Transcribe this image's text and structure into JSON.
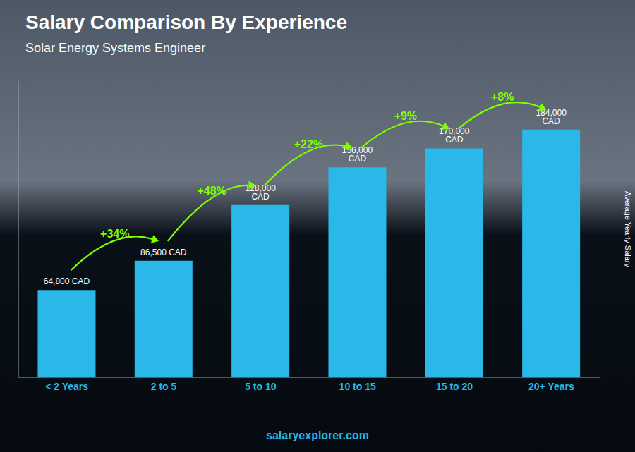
{
  "chart_data": {
    "type": "bar",
    "title": "Salary Comparison By Experience",
    "subtitle": "Solar Energy Systems Engineer",
    "categories": [
      "< 2 Years",
      "2 to 5",
      "5 to 10",
      "10 to 15",
      "15 to 20",
      "20+ Years"
    ],
    "values": [
      64800,
      86500,
      128000,
      156000,
      170000,
      184000
    ],
    "value_labels": [
      "64,800 CAD",
      "86,500 CAD",
      "128,000 CAD",
      "156,000 CAD",
      "170,000 CAD",
      "184,000 CAD"
    ],
    "data_labels": true,
    "color": "#29B8E8",
    "ylim": [
      0,
      220000
    ],
    "tick_labels": "x",
    "grid": false,
    "y_label": "Average Yearly Salary",
    "annotations": [
      "+34%",
      "+48%",
      "+22%",
      "+9%",
      "+8%"
    ],
    "footer": "salaryexplorer.com"
  }
}
